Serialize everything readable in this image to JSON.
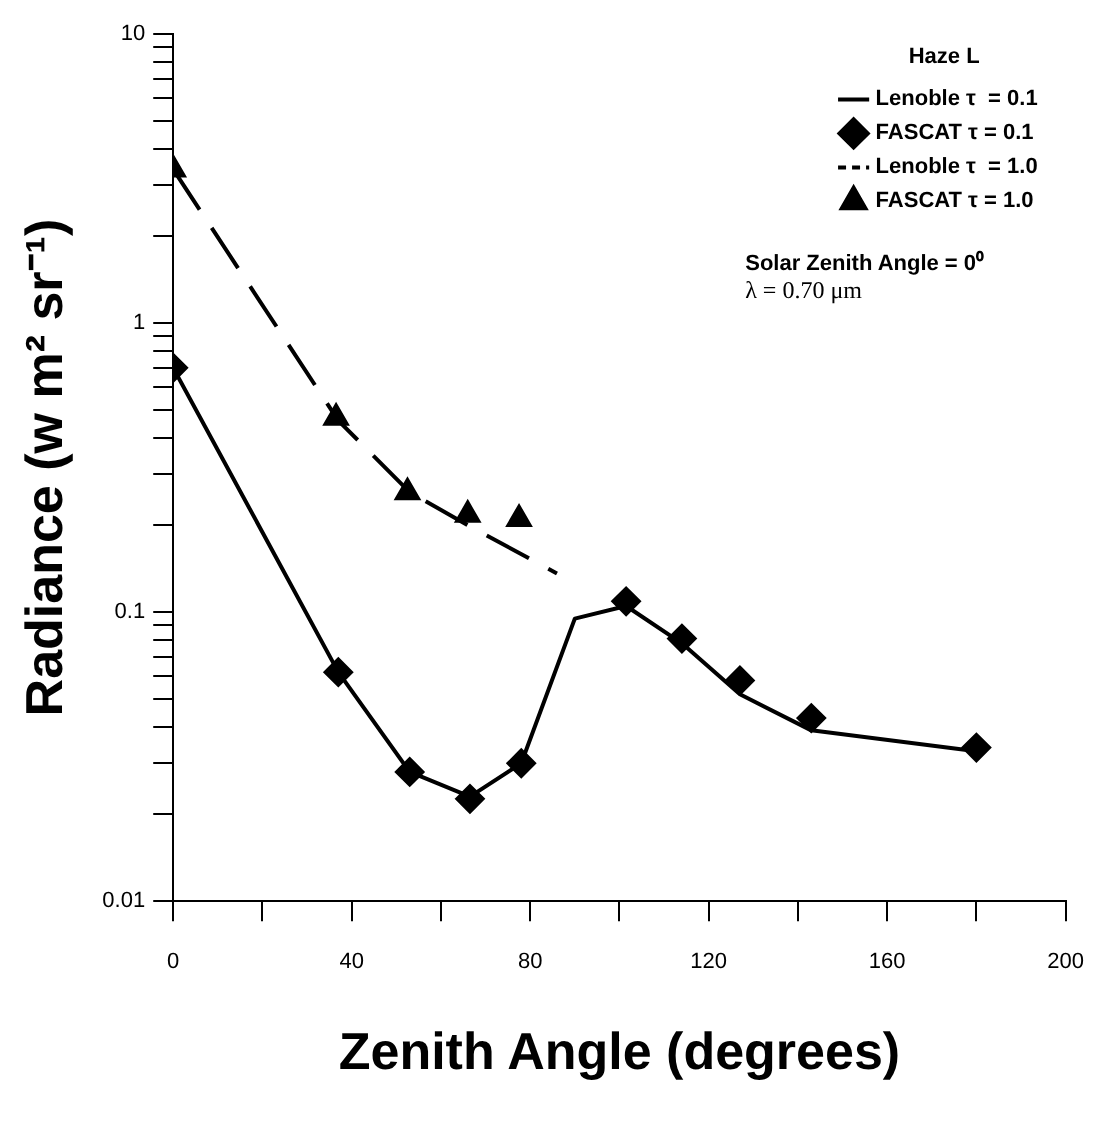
{
  "chart_data": {
    "type": "line",
    "xlabel": "Zenith Angle (degrees)",
    "ylabel": "Radiance (w m² sr⁻¹)",
    "legend_title": "Haze L",
    "log": "y",
    "grid": false,
    "legend": "top right",
    "xlim": [
      0,
      200
    ],
    "xticks": [
      0,
      {
        "value": 20,
        "label": null
      },
      40,
      {
        "value": 60,
        "label": null
      },
      80,
      {
        "value": 100,
        "label": null
      },
      120,
      {
        "value": 140,
        "label": null
      },
      160,
      {
        "value": 180,
        "label": null
      },
      200
    ],
    "ylim": [
      0.01,
      10
    ],
    "yticks": [
      0.01,
      {
        "value": 0.02,
        "label": null
      },
      {
        "value": 0.03,
        "label": null
      },
      {
        "value": 0.04,
        "label": null
      },
      {
        "value": 0.05,
        "label": null
      },
      {
        "value": 0.06,
        "label": null
      },
      {
        "value": 0.07,
        "label": null
      },
      {
        "value": 0.08,
        "label": null
      },
      {
        "value": 0.09,
        "label": null
      },
      0.1,
      {
        "value": 0.2,
        "label": null
      },
      {
        "value": 0.3,
        "label": null
      },
      {
        "value": 0.4,
        "label": null
      },
      {
        "value": 0.5,
        "label": null
      },
      {
        "value": 0.6,
        "label": null
      },
      {
        "value": 0.7,
        "label": null
      },
      {
        "value": 0.8,
        "label": null
      },
      {
        "value": 0.9,
        "label": null
      },
      1,
      {
        "value": 2,
        "label": null
      },
      {
        "value": 3,
        "label": null
      },
      {
        "value": 4,
        "label": null
      },
      {
        "value": 5,
        "label": null
      },
      {
        "value": 6,
        "label": null
      },
      {
        "value": 7,
        "label": null
      },
      {
        "value": 8,
        "label": null
      },
      {
        "value": 9,
        "label": null
      },
      10
    ],
    "series": [
      {
        "name": "Lenoble τ  = 0.1",
        "marker": "none",
        "line_style": "solid",
        "color": "#000000",
        "x": [
          0,
          37,
          53,
          66.5,
          78,
          90,
          101.5,
          114,
          127,
          143,
          180
        ],
        "values": [
          0.7,
          0.062,
          0.028,
          0.023,
          0.03,
          0.095,
          0.105,
          0.078,
          0.052,
          0.039,
          0.033
        ]
      },
      {
        "name": "FASCAT τ = 0.1",
        "type": "scatter",
        "marker": "diamond",
        "color": "#000000",
        "x": [
          0,
          37,
          53,
          66.5,
          78,
          101.5,
          114,
          127,
          143,
          180
        ],
        "values": [
          0.7,
          0.062,
          0.028,
          0.0226,
          0.03,
          0.109,
          0.081,
          0.058,
          0.043,
          0.034
        ]
      },
      {
        "name": "Lenoble τ  = 1.0",
        "marker": "none",
        "line_style": "dashed",
        "color": "#000000",
        "x": [
          0,
          37,
          53,
          66,
          86
        ],
        "values": [
          3.4,
          0.46,
          0.26,
          0.2,
          0.136
        ]
      },
      {
        "name": "FASCAT τ = 1.0",
        "type": "scatter",
        "marker": "triangle",
        "color": "#000000",
        "x": [
          0,
          36.5,
          52.5,
          66,
          77.5
        ],
        "values": [
          3.4,
          0.47,
          0.26,
          0.217,
          0.21
        ]
      }
    ],
    "annotations": [
      "Solar Zenith Angle = 0⁰",
      "λ = 0.70 μm"
    ]
  }
}
